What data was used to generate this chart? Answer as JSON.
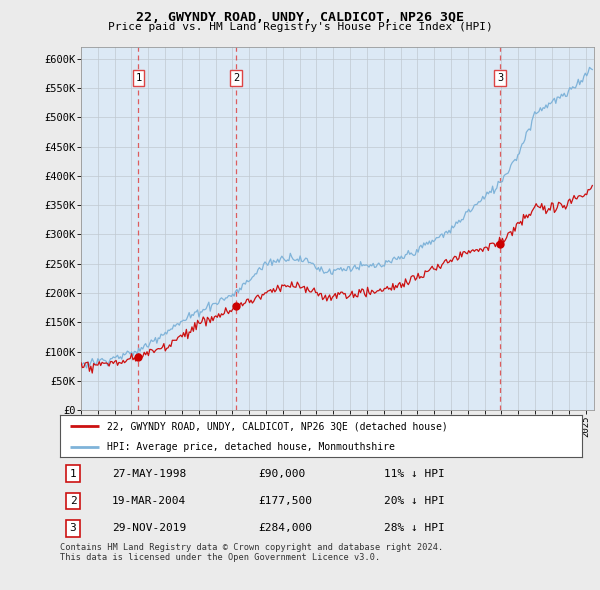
{
  "title": "22, GWYNDY ROAD, UNDY, CALDICOT, NP26 3QE",
  "subtitle": "Price paid vs. HM Land Registry's House Price Index (HPI)",
  "yticks": [
    0,
    50000,
    100000,
    150000,
    200000,
    250000,
    300000,
    350000,
    400000,
    450000,
    500000,
    550000,
    600000
  ],
  "ytick_labels": [
    "£0",
    "£50K",
    "£100K",
    "£150K",
    "£200K",
    "£250K",
    "£300K",
    "£350K",
    "£400K",
    "£450K",
    "£500K",
    "£550K",
    "£600K"
  ],
  "xmin": 1995.0,
  "xmax": 2025.5,
  "ymin": 0,
  "ymax": 620000,
  "hpi_color": "#7fb3d9",
  "price_color": "#cc1111",
  "marker_color": "#cc0000",
  "dashed_color": "#dd4444",
  "sale_dates": [
    1998.41,
    2004.21,
    2019.91
  ],
  "sale_prices": [
    90000,
    177500,
    284000
  ],
  "sale_labels": [
    "1",
    "2",
    "3"
  ],
  "legend_entries": [
    "22, GWYNDY ROAD, UNDY, CALDICOT, NP26 3QE (detached house)",
    "HPI: Average price, detached house, Monmouthshire"
  ],
  "table_rows": [
    [
      "1",
      "27-MAY-1998",
      "£90,000",
      "11% ↓ HPI"
    ],
    [
      "2",
      "19-MAR-2004",
      "£177,500",
      "20% ↓ HPI"
    ],
    [
      "3",
      "29-NOV-2019",
      "£284,000",
      "28% ↓ HPI"
    ]
  ],
  "footnote": "Contains HM Land Registry data © Crown copyright and database right 2024.\nThis data is licensed under the Open Government Licence v3.0.",
  "background_color": "#ebebeb",
  "plot_bg_color": "#dce9f5",
  "grid_color": "#c0c8d0"
}
